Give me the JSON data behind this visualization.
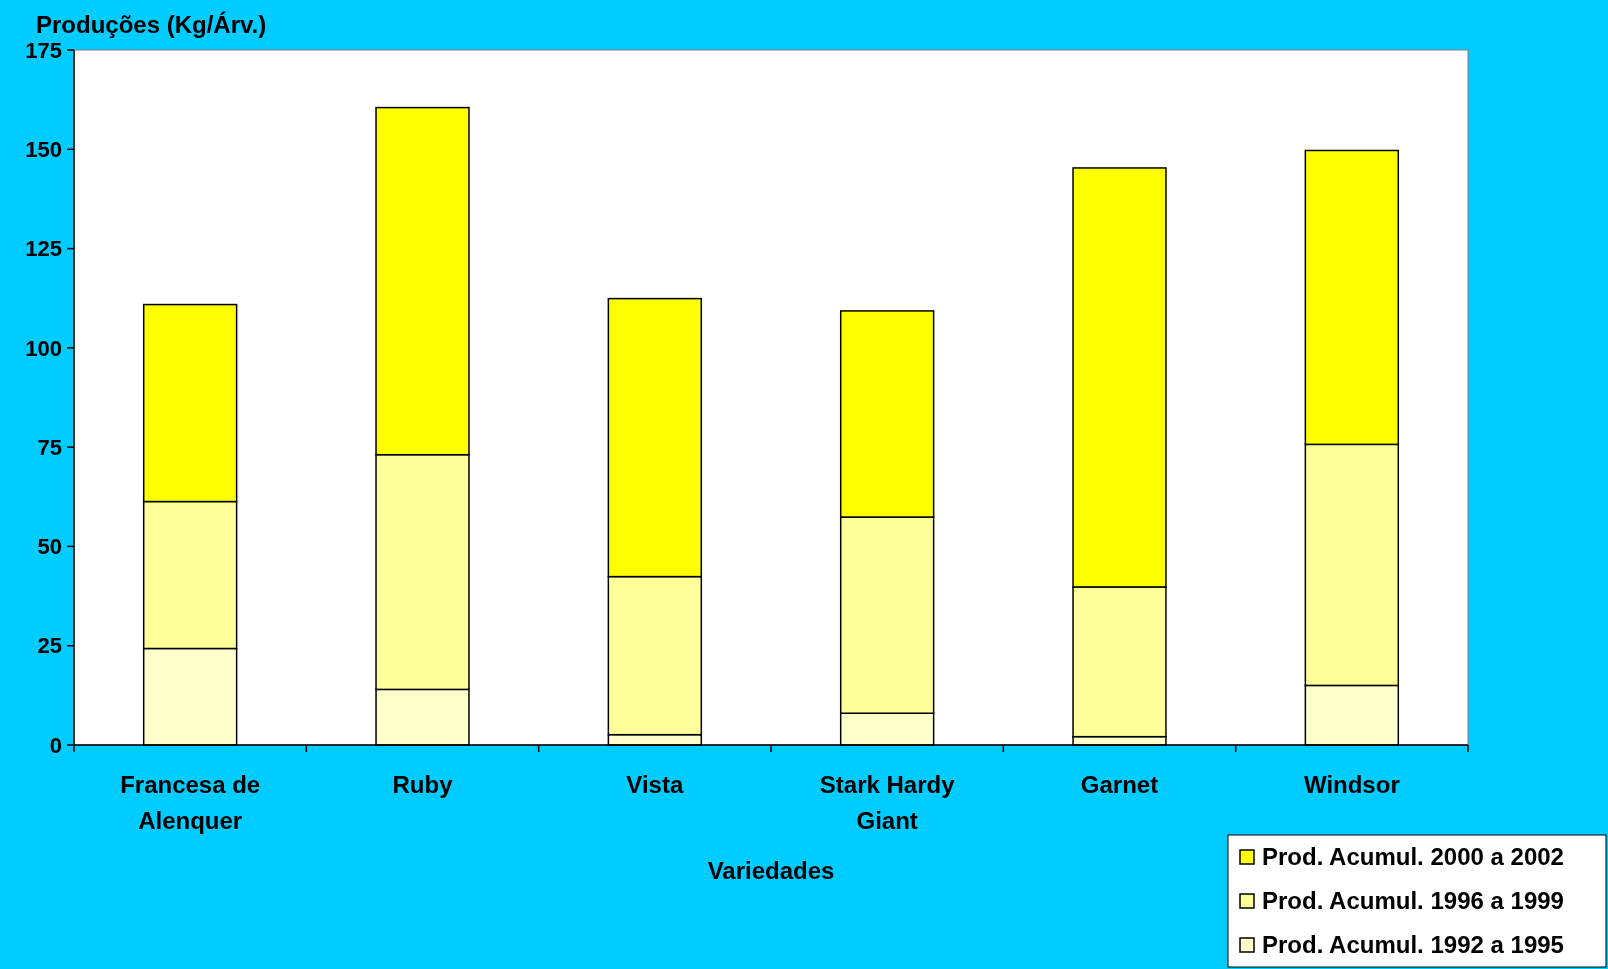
{
  "chart_data": {
    "type": "bar",
    "stacked": true,
    "ylabel": "Produções (Kg/Árv.)",
    "xlabel": "Variedades",
    "categories": [
      "Francesa de Alenquer",
      "Ruby",
      "Vista",
      "Stark Hardy Giant",
      "Garnet",
      "Windsor"
    ],
    "series": [
      {
        "name": "Prod. Acumul. 1992 a 1995",
        "color": "#ffffcc",
        "values": [
          24.3,
          14,
          2.6,
          8,
          2.1,
          15
        ]
      },
      {
        "name": "Prod. Acumul. 1996 a 1999",
        "color": "#ffff99",
        "values": [
          37,
          59.1,
          39.8,
          49.4,
          37.7,
          60.7
        ]
      },
      {
        "name": "Prod. Acumul. 2000 a 2002",
        "color": "#ffff00",
        "values": [
          49.6,
          87.4,
          70,
          51.9,
          105.5,
          74
        ]
      }
    ],
    "ylim": [
      0,
      175
    ],
    "yticks": [
      0,
      25,
      50,
      75,
      100,
      125,
      150,
      175
    ],
    "grid": false,
    "legend": "bottom right"
  }
}
